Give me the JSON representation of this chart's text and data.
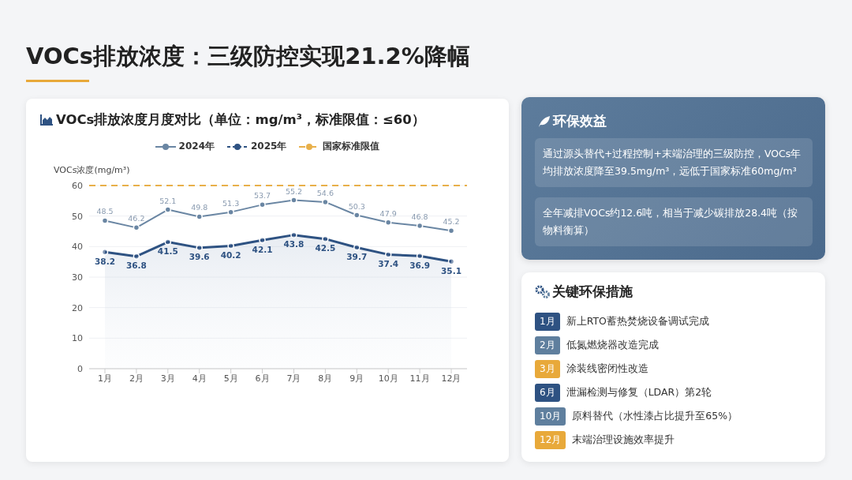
{
  "chart_data": [
    {
      "type": "line",
      "title": "VOCs排放浓度：三级防控实现21.2%降幅",
      "subtitle": "VOCs排放浓度月度对比（单位：mg/m³，标准限值：≤60）",
      "ylabel": "VOCs浓度(mg/m³)",
      "categories": [
        "1月",
        "2月",
        "3月",
        "4月",
        "5月",
        "6月",
        "7月",
        "8月",
        "9月",
        "10月",
        "11月",
        "12月"
      ],
      "series": [
        {
          "name": "2024年",
          "color": "#6a86a3",
          "values": [
            48.5,
            46.2,
            52.1,
            49.8,
            51.3,
            53.7,
            55.2,
            54.6,
            50.3,
            47.9,
            46.8,
            45.2
          ]
        },
        {
          "name": "2025年",
          "type": "area",
          "color": "#2e5282",
          "values": [
            38.2,
            36.8,
            41.5,
            39.6,
            40.2,
            42.1,
            43.8,
            42.5,
            39.7,
            37.4,
            36.9,
            35.1
          ]
        }
      ],
      "ylim": [
        0,
        60
      ],
      "yticks": [
        0,
        10,
        20,
        30,
        40,
        50,
        60
      ],
      "grid": "y",
      "legend": "top",
      "marker": "circle",
      "data_labels": true,
      "ref_lines": [
        {
          "axis": "y",
          "value": 60,
          "label": "国家标准限值",
          "color": "#e8b04a",
          "line_style": "dashed"
        }
      ]
    },
    {
      "type": "other",
      "title": "环保效益",
      "annotations": [
        "通过源头替代+过程控制+末端治理的三级防控，VOCs年均排放浓度降至39.5mg/m³，远低于国家标准60mg/m³",
        "全年减排VOCs约12.6吨，相当于减少碳排放28.4吨（按物料衡算）"
      ]
    },
    {
      "type": "other",
      "title": "关键环保措施",
      "colors": [
        "#2e5282",
        "#5f7f9e",
        "#e8a93a",
        "#2e5282",
        "#5f7f9e",
        "#e8a93a"
      ],
      "annotations": [
        "1月",
        "新上RTO蓄热焚烧设备调试完成",
        "2月",
        "低氮燃烧器改造完成",
        "3月",
        "涂装线密闭性改造",
        "6月",
        "泄漏检测与修复（LDAR）第2轮",
        "10月",
        "原料替代（水性漆占比提升至65%）",
        "12月",
        "末端治理设施效率提升"
      ]
    }
  ]
}
